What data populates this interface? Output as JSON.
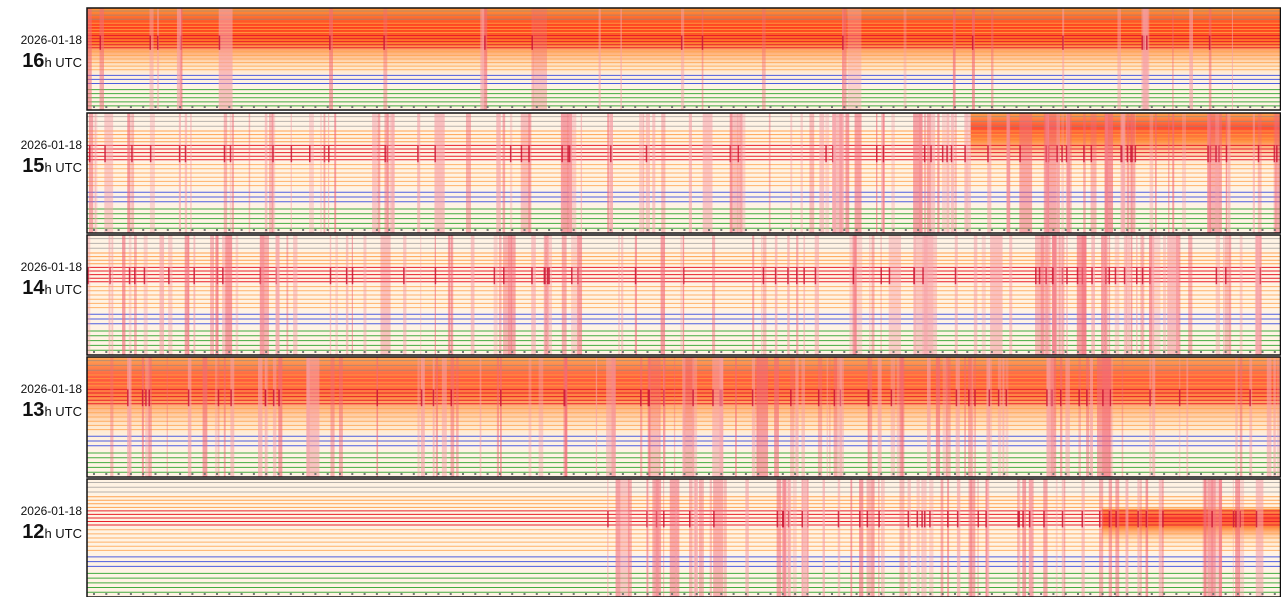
{
  "panels": [
    {
      "date": "2026-01-18",
      "hour": "16",
      "unit": "h UTC"
    },
    {
      "date": "2026-01-18",
      "hour": "15",
      "unit": "h UTC"
    },
    {
      "date": "2026-01-18",
      "hour": "14",
      "unit": "h UTC"
    },
    {
      "date": "2026-01-18",
      "hour": "13",
      "unit": "h UTC"
    },
    {
      "date": "2026-01-18",
      "hour": "12",
      "unit": "h UTC"
    }
  ]
}
